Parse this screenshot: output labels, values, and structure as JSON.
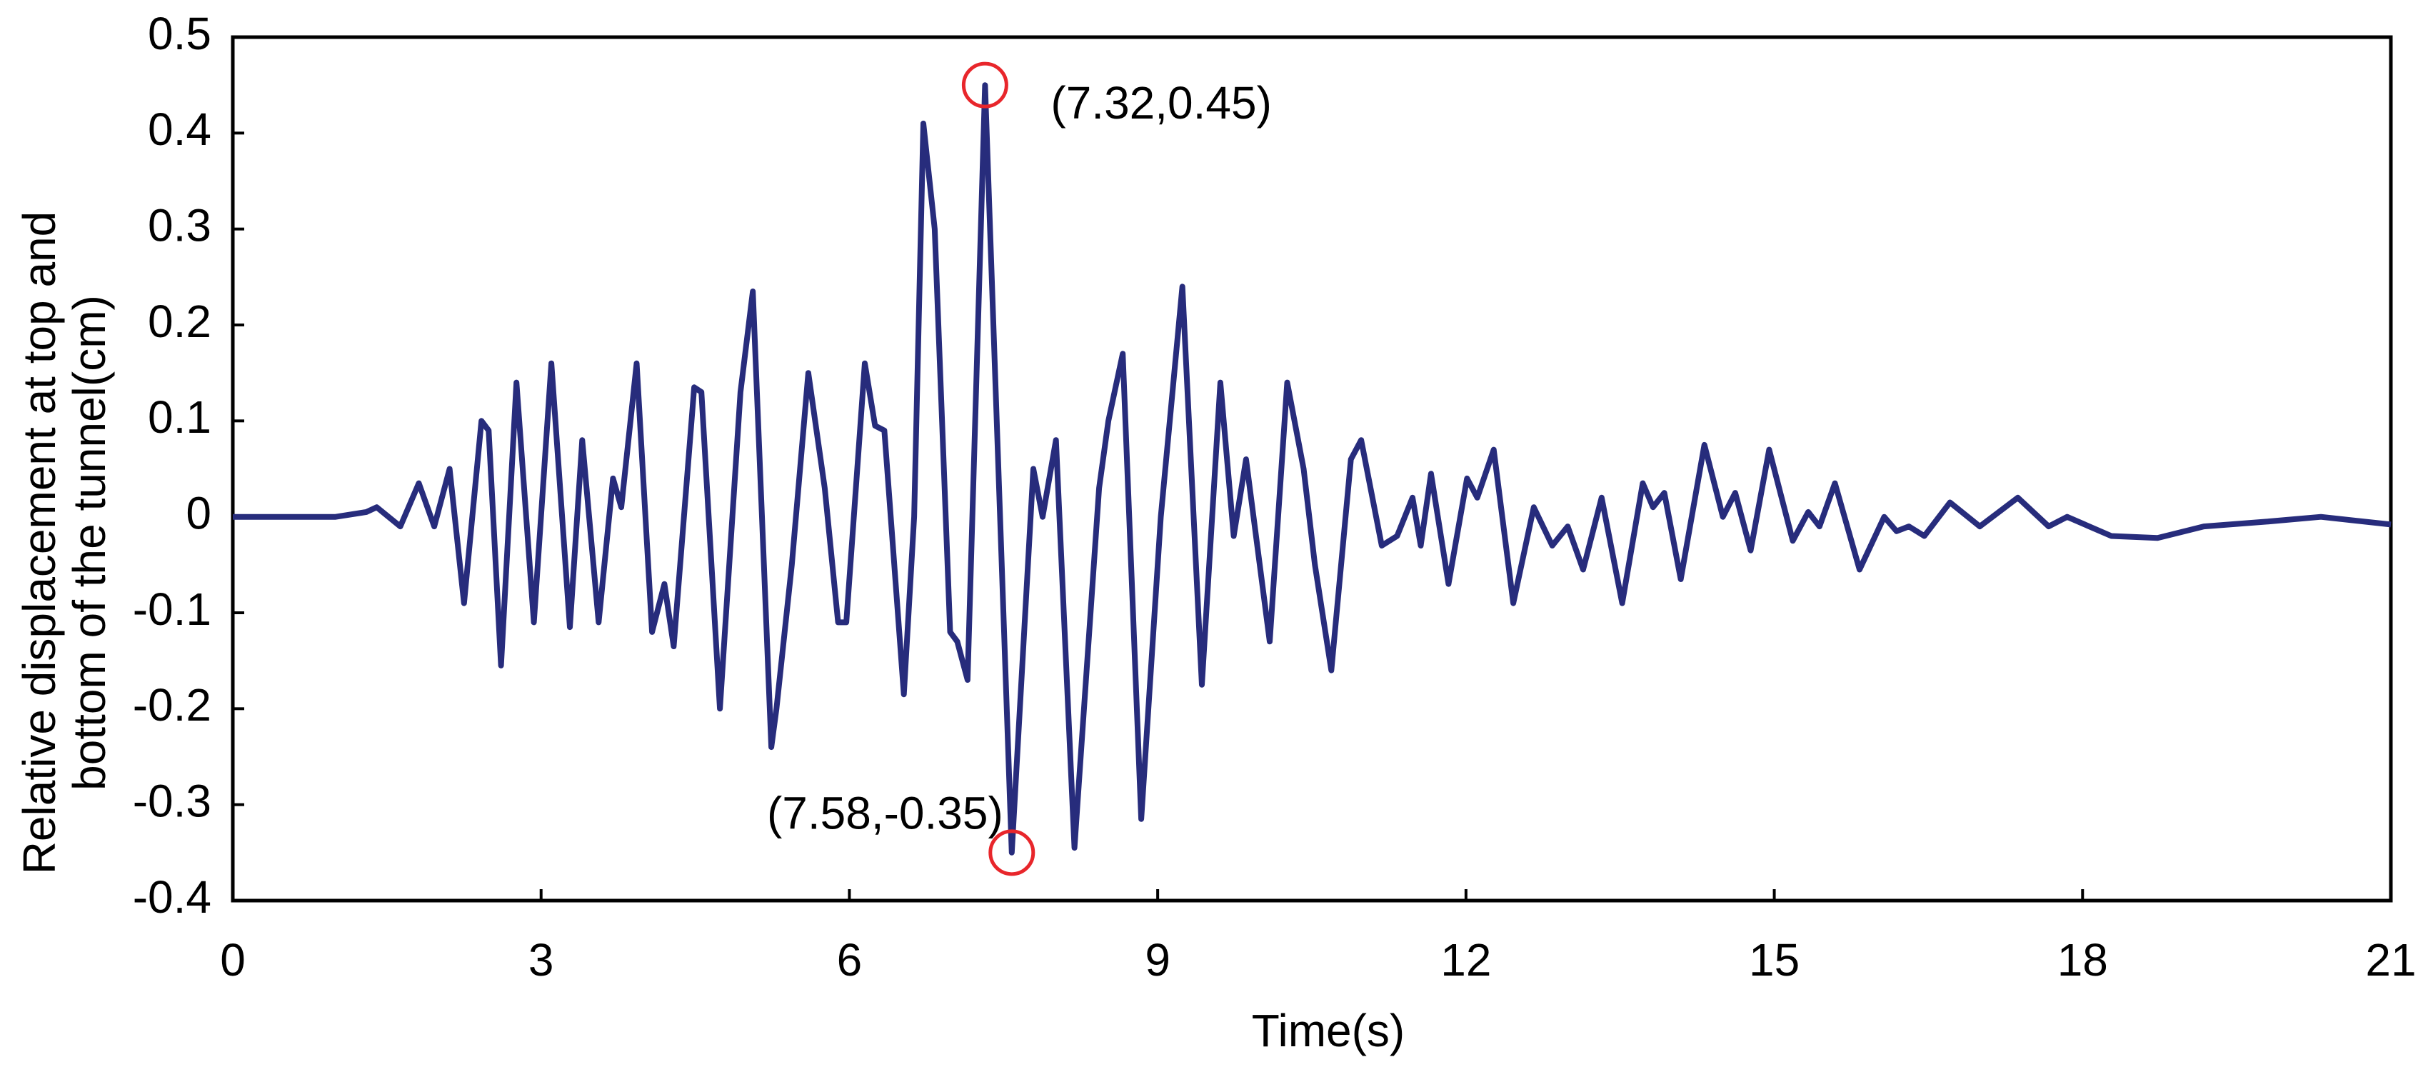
{
  "chart_data": {
    "type": "line",
    "x_label": "Time(s)",
    "y_label": [
      "Relative displacement at top and",
      "bottom of the tunnel(cm)"
    ],
    "xlim": [
      0,
      21
    ],
    "xticks": [
      0,
      3,
      6,
      9,
      12,
      15,
      18,
      21
    ],
    "ylim": [
      -0.4,
      0.5
    ],
    "yticks": [
      0.5,
      0.4,
      0.3,
      0.2,
      0.1,
      0,
      -0.1,
      -0.2,
      -0.3,
      -0.4
    ],
    "grid": false,
    "series": [
      {
        "color": "#272c7c",
        "x": [
          0,
          0.6,
          1.0,
          1.3,
          1.4,
          1.63,
          1.81,
          1.96,
          2.11,
          2.25,
          2.42,
          2.49,
          2.61,
          2.76,
          2.93,
          3.1,
          3.28,
          3.4,
          3.56,
          3.7,
          3.78,
          3.93,
          4.08,
          4.2,
          4.29,
          4.49,
          4.56,
          4.74,
          4.94,
          5.06,
          5.24,
          5.29,
          5.44,
          5.6,
          5.76,
          5.89,
          5.97,
          6.15,
          6.25,
          6.34,
          6.53,
          6.63,
          6.72,
          6.83,
          6.98,
          7.05,
          7.15,
          7.32,
          7.58,
          7.79,
          7.88,
          8.01,
          8.19,
          8.43,
          8.52,
          8.66,
          8.84,
          9.03,
          9.24,
          9.43,
          9.61,
          9.74,
          9.86,
          10.09,
          10.26,
          10.42,
          10.53,
          10.69,
          10.88,
          10.98,
          11.18,
          11.33,
          11.48,
          11.56,
          11.66,
          11.83,
          12.01,
          12.11,
          12.27,
          12.46,
          12.66,
          12.84,
          12.99,
          13.14,
          13.32,
          13.52,
          13.72,
          13.82,
          13.93,
          14.09,
          14.32,
          14.5,
          14.62,
          14.77,
          14.95,
          15.18,
          15.33,
          15.44,
          15.59,
          15.83,
          16.07,
          16.19,
          16.31,
          16.46,
          16.71,
          17.0,
          17.37,
          17.67,
          17.85,
          18.28,
          18.73,
          19.18,
          19.79,
          20.32,
          21
        ],
        "values": [
          0,
          0,
          0,
          0.005,
          0.01,
          -0.01,
          0.035,
          -0.01,
          0.05,
          -0.09,
          0.1,
          0.09,
          -0.155,
          0.14,
          -0.11,
          0.16,
          -0.115,
          0.08,
          -0.11,
          0.04,
          0.01,
          0.16,
          -0.12,
          -0.07,
          -0.135,
          0.135,
          0.13,
          -0.2,
          0.13,
          0.235,
          -0.24,
          -0.2,
          -0.05,
          0.15,
          0.03,
          -0.11,
          -0.11,
          0.16,
          0.095,
          0.09,
          -0.185,
          0.0,
          0.41,
          0.3,
          -0.12,
          -0.13,
          -0.17,
          0.45,
          -0.35,
          0.05,
          0.0,
          0.08,
          -0.345,
          0.03,
          0.1,
          0.17,
          -0.315,
          0.0,
          0.24,
          -0.175,
          0.14,
          -0.02,
          0.06,
          -0.13,
          0.14,
          0.05,
          -0.05,
          -0.16,
          0.06,
          0.08,
          -0.03,
          -0.02,
          0.02,
          -0.03,
          0.045,
          -0.07,
          0.04,
          0.02,
          0.07,
          -0.09,
          0.01,
          -0.03,
          -0.01,
          -0.055,
          0.02,
          -0.09,
          0.035,
          0.01,
          0.025,
          -0.065,
          0.075,
          0.0,
          0.025,
          -0.035,
          0.07,
          -0.025,
          0.005,
          -0.01,
          0.035,
          -0.055,
          0.0,
          -0.015,
          -0.01,
          -0.02,
          0.015,
          -0.01,
          0.02,
          -0.01,
          0.0,
          -0.02,
          -0.022,
          -0.01,
          -0.005,
          0.0,
          -0.008
        ]
      }
    ],
    "annotations": [
      {
        "label": "(7.32,0.45)",
        "x": 7.32,
        "y": 0.45,
        "color": "#e8262b"
      },
      {
        "label": "(7.58,-0.35)",
        "x": 7.58,
        "y": -0.35,
        "color": "#e8262b"
      }
    ]
  }
}
